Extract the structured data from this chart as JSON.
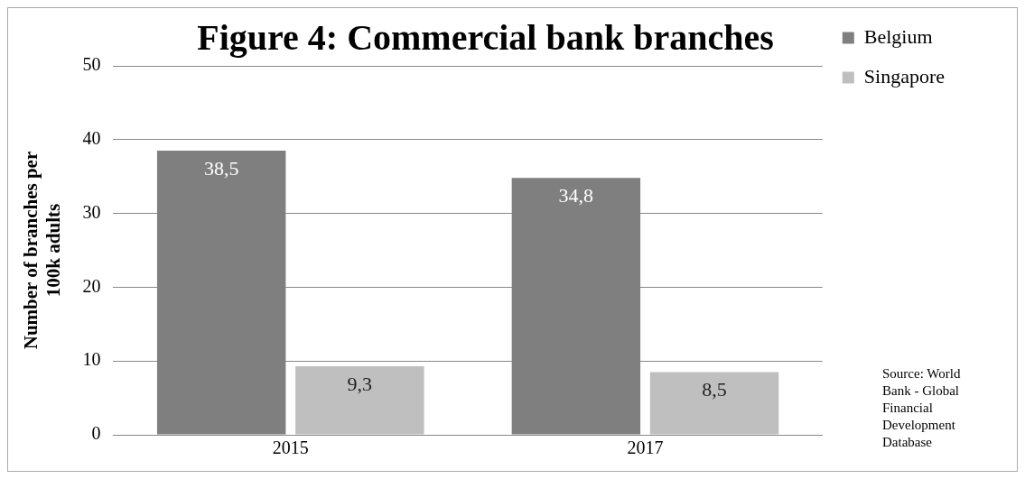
{
  "chart_data": {
    "type": "bar",
    "title": "Figure 4: Commercial bank branches",
    "ylabel": "Number of branches per 100k adults",
    "categories": [
      "2015",
      "2017"
    ],
    "series": [
      {
        "name": "Belgium",
        "color": "#7f7f7f",
        "values": [
          38.5,
          34.8
        ],
        "value_labels": [
          "38,5",
          "34,8"
        ]
      },
      {
        "name": "Singapore",
        "color": "#bfbfbf",
        "values": [
          9.3,
          8.5
        ],
        "value_labels": [
          "9,3",
          "8,5"
        ]
      }
    ],
    "ylim": [
      0,
      50
    ],
    "yticks": [
      0,
      10,
      20,
      30,
      40,
      50
    ],
    "grid": "y",
    "legend": "right",
    "annotations": [
      "Source: World Bank - Global Financial Development Database"
    ]
  }
}
